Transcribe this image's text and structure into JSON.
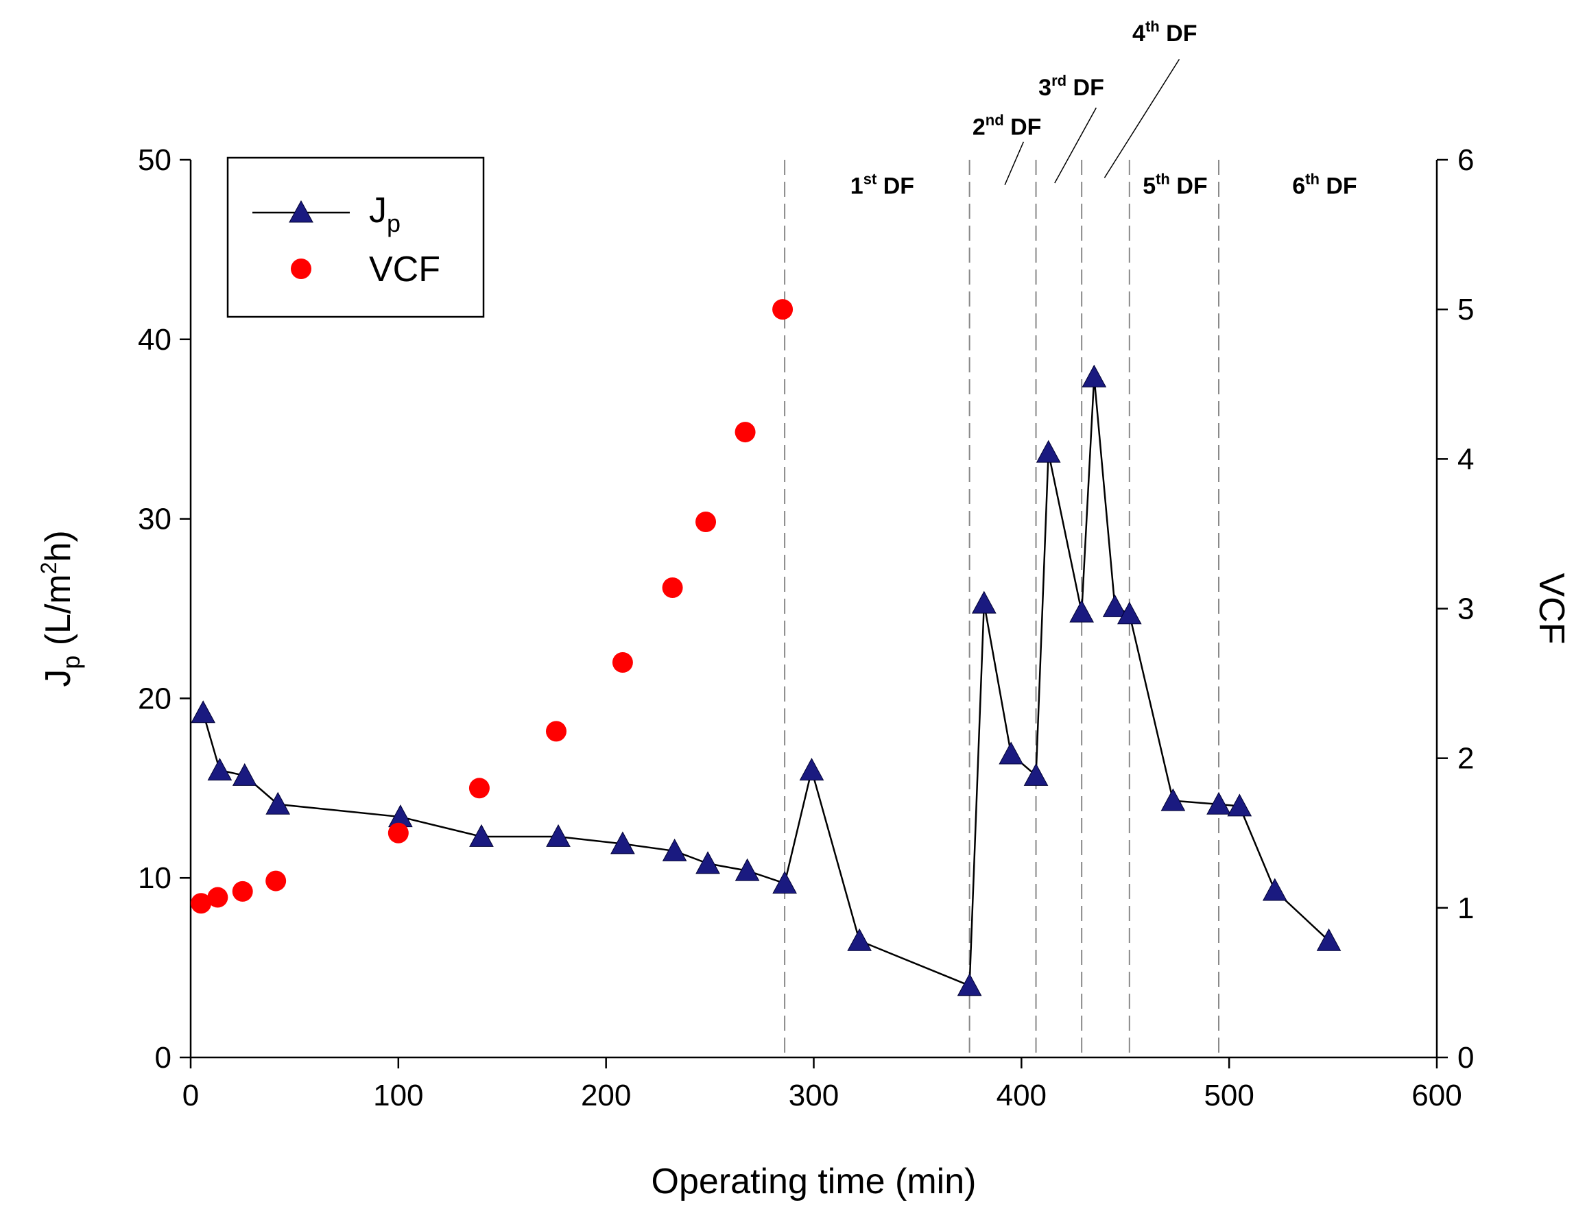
{
  "chart_data": {
    "type": "scatter",
    "title": "",
    "xlabel": "Operating time (min)",
    "ylabel": "J",
    "ylabel_sub": "p",
    "ylabel_unit_pre": " (L/m",
    "ylabel_unit_sup": "2",
    "ylabel_unit_post": "h)",
    "y2label": "VCF",
    "xlim": [
      0,
      600
    ],
    "ylim": [
      0,
      50
    ],
    "y2lim": [
      0,
      6
    ],
    "xticks": [
      0,
      100,
      200,
      300,
      400,
      500,
      600
    ],
    "yticks": [
      0,
      10,
      20,
      30,
      40,
      50
    ],
    "y2ticks": [
      0,
      1,
      2,
      3,
      4,
      5,
      6
    ],
    "xtick_labels": [
      "0",
      "100",
      "200",
      "300",
      "400",
      "500",
      "600"
    ],
    "ytick_labels": [
      "0",
      "10",
      "20",
      "30",
      "40",
      "50"
    ],
    "y2tick_labels": [
      "0",
      "1",
      "2",
      "3",
      "4",
      "5",
      "6"
    ],
    "grid": false,
    "legend": {
      "position": "top-left",
      "entries": [
        {
          "main": "J",
          "sub": "p"
        },
        {
          "main": "VCF",
          "sub": ""
        }
      ]
    },
    "series": [
      {
        "name": "Jp",
        "axis": "left",
        "marker": "triangle",
        "color": "#1a1a80",
        "line": true,
        "x": [
          6,
          14,
          26,
          42,
          101,
          140,
          177,
          208,
          233,
          249,
          268,
          286,
          299,
          322,
          375,
          382,
          395,
          407,
          413,
          429,
          435,
          445,
          452,
          473,
          495,
          505,
          522,
          548
        ],
        "y": [
          19.2,
          16.0,
          15.7,
          14.1,
          13.4,
          12.3,
          12.3,
          11.9,
          11.5,
          10.8,
          10.4,
          9.7,
          16.0,
          6.5,
          4.0,
          25.3,
          16.9,
          15.7,
          33.7,
          24.8,
          37.9,
          25.1,
          24.7,
          14.3,
          14.1,
          14.0,
          9.3,
          6.5
        ]
      },
      {
        "name": "VCF",
        "axis": "right",
        "marker": "circle",
        "color": "#ff0000",
        "line": false,
        "x": [
          5,
          13,
          25,
          41,
          100,
          139,
          176,
          208,
          232,
          248,
          267,
          285
        ],
        "y": [
          1.03,
          1.07,
          1.11,
          1.18,
          1.5,
          1.8,
          2.18,
          2.64,
          3.14,
          3.58,
          4.18,
          5.0
        ]
      }
    ],
    "vlines": [
      286,
      375,
      407,
      429,
      452,
      495
    ],
    "annotations": [
      {
        "id": "df1",
        "num": "1",
        "sup": "st",
        "text": " DF",
        "x": 333,
        "y": 48.1,
        "leader": null
      },
      {
        "id": "df2",
        "num": "2",
        "sup": "nd",
        "text": " DF",
        "x": 393,
        "y": 51.4,
        "leader": [
          392,
          48.6,
          401,
          51.0
        ]
      },
      {
        "id": "df3",
        "num": "3",
        "sup": "rd",
        "text": " DF",
        "x": 424,
        "y": 53.6,
        "leader": [
          416,
          48.7,
          436,
          52.9
        ]
      },
      {
        "id": "df4",
        "num": "4",
        "sup": "th",
        "text": " DF",
        "x": 469,
        "y": 56.6,
        "leader": [
          440,
          49.0,
          476,
          55.6
        ]
      },
      {
        "id": "df5",
        "num": "5",
        "sup": "th",
        "text": " DF",
        "x": 474,
        "y": 48.1,
        "leader": null
      },
      {
        "id": "df6",
        "num": "6",
        "sup": "th",
        "text": " DF",
        "x": 546,
        "y": 48.1,
        "leader": null
      }
    ]
  }
}
